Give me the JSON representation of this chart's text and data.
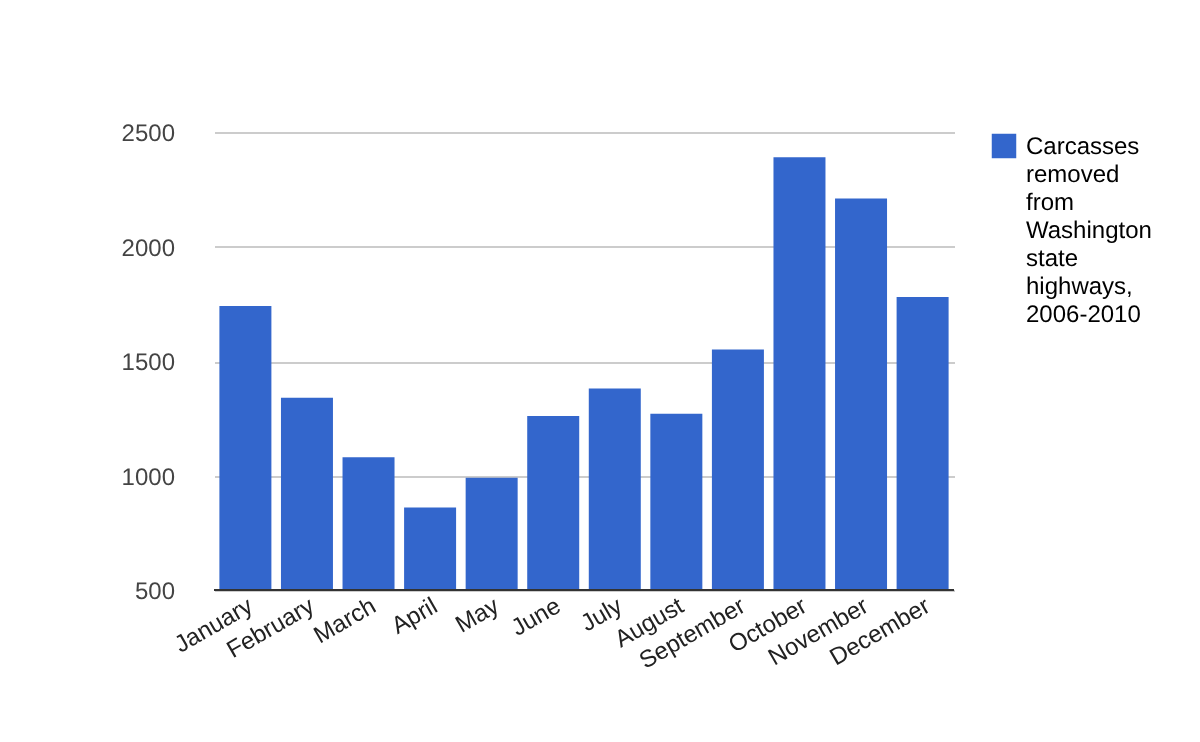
{
  "chart_data": {
    "type": "bar",
    "categories": [
      "January",
      "February",
      "March",
      "April",
      "May",
      "June",
      "July",
      "August",
      "September",
      "October",
      "November",
      "December"
    ],
    "series": [
      {
        "name": "Carcasses removed from Washington state highways, 2006-2010",
        "color": "#3366cc",
        "values": [
          1740,
          1340,
          1080,
          860,
          990,
          1260,
          1380,
          1270,
          1550,
          2390,
          2210,
          1780
        ]
      }
    ],
    "ylim": [
      500,
      2500
    ],
    "yticks": [
      500,
      1000,
      1500,
      2000,
      2500
    ],
    "grid": "y",
    "legend": "right"
  }
}
